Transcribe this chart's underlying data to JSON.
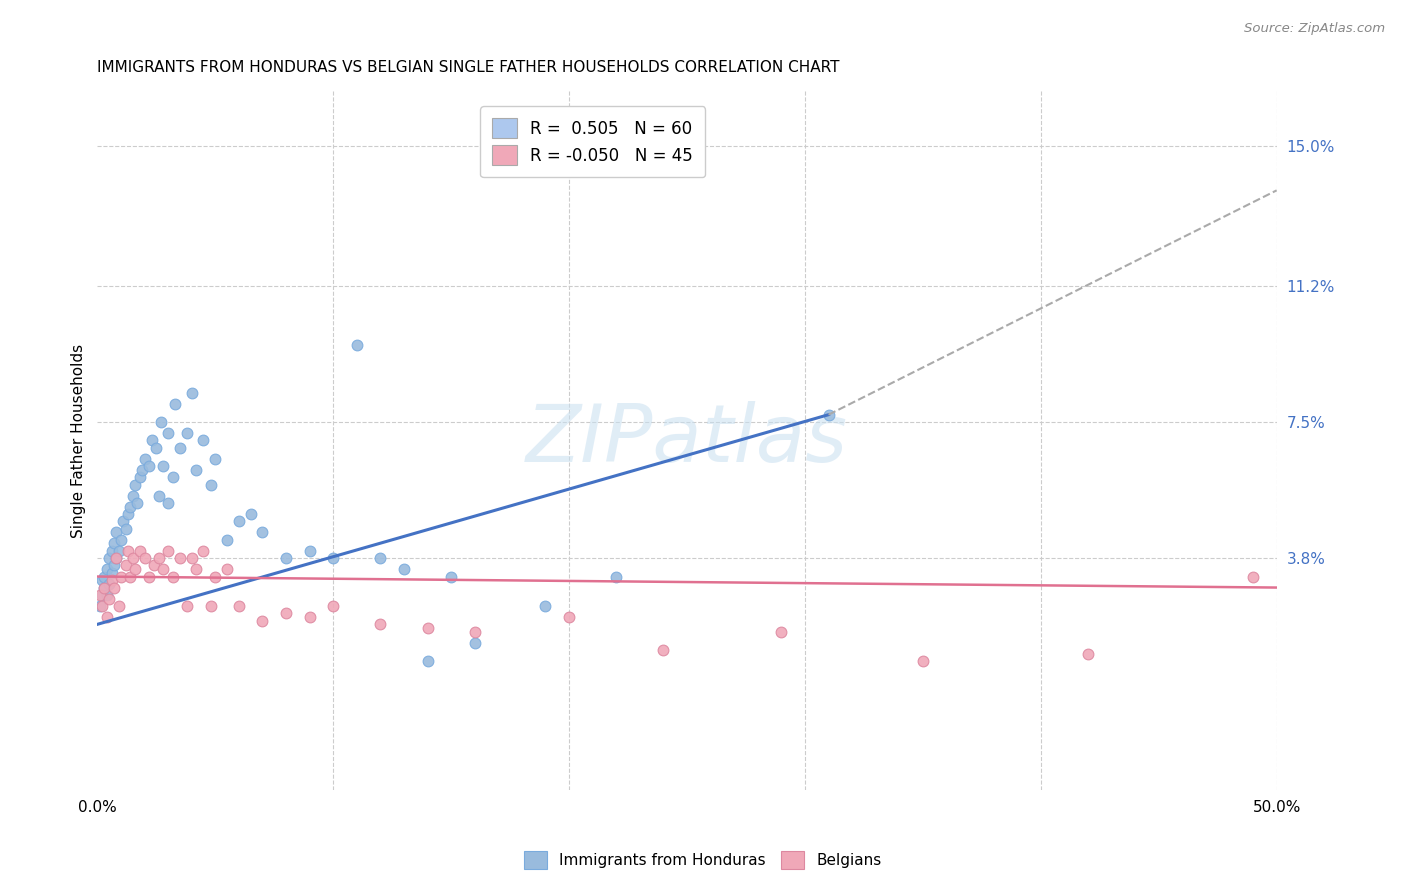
{
  "title": "IMMIGRANTS FROM HONDURAS VS BELGIAN SINGLE FATHER HOUSEHOLDS CORRELATION CHART",
  "source": "Source: ZipAtlas.com",
  "ylabel": "Single Father Households",
  "xlim": [
    0.0,
    0.5
  ],
  "ylim": [
    -0.025,
    0.165
  ],
  "yticks_right": [
    0.15,
    0.112,
    0.075,
    0.038
  ],
  "ytick_labels_right": [
    "15.0%",
    "11.2%",
    "7.5%",
    "3.8%"
  ],
  "legend_entries": [
    {
      "label": "R =  0.505   N = 60",
      "color": "#adc8ee"
    },
    {
      "label": "R = -0.050   N = 45",
      "color": "#f0a8b8"
    }
  ],
  "watermark_text": "ZIPatlas",
  "blue_color": "#4472c4",
  "pink_color": "#e07090",
  "blue_scatter_color": "#99bbdd",
  "pink_scatter_color": "#f0a8b8",
  "blue_line_x": [
    0.0,
    0.31
  ],
  "blue_line_y": [
    0.02,
    0.077
  ],
  "dash_line_x": [
    0.31,
    0.5
  ],
  "dash_line_y": [
    0.077,
    0.138
  ],
  "pink_line_x": [
    0.0,
    0.5
  ],
  "pink_line_y": [
    0.033,
    0.03
  ],
  "blue_dots": [
    [
      0.001,
      0.025
    ],
    [
      0.002,
      0.028
    ],
    [
      0.002,
      0.032
    ],
    [
      0.003,
      0.03
    ],
    [
      0.003,
      0.033
    ],
    [
      0.004,
      0.028
    ],
    [
      0.004,
      0.035
    ],
    [
      0.005,
      0.031
    ],
    [
      0.005,
      0.038
    ],
    [
      0.006,
      0.034
    ],
    [
      0.006,
      0.04
    ],
    [
      0.007,
      0.036
    ],
    [
      0.007,
      0.042
    ],
    [
      0.008,
      0.038
    ],
    [
      0.008,
      0.045
    ],
    [
      0.009,
      0.04
    ],
    [
      0.01,
      0.043
    ],
    [
      0.011,
      0.048
    ],
    [
      0.012,
      0.046
    ],
    [
      0.013,
      0.05
    ],
    [
      0.014,
      0.052
    ],
    [
      0.015,
      0.055
    ],
    [
      0.016,
      0.058
    ],
    [
      0.017,
      0.053
    ],
    [
      0.018,
      0.06
    ],
    [
      0.019,
      0.062
    ],
    [
      0.02,
      0.065
    ],
    [
      0.022,
      0.063
    ],
    [
      0.023,
      0.07
    ],
    [
      0.025,
      0.068
    ],
    [
      0.026,
      0.055
    ],
    [
      0.027,
      0.075
    ],
    [
      0.028,
      0.063
    ],
    [
      0.03,
      0.053
    ],
    [
      0.03,
      0.072
    ],
    [
      0.032,
      0.06
    ],
    [
      0.033,
      0.08
    ],
    [
      0.035,
      0.068
    ],
    [
      0.038,
      0.072
    ],
    [
      0.04,
      0.083
    ],
    [
      0.042,
      0.062
    ],
    [
      0.045,
      0.07
    ],
    [
      0.048,
      0.058
    ],
    [
      0.05,
      0.065
    ],
    [
      0.055,
      0.043
    ],
    [
      0.06,
      0.048
    ],
    [
      0.065,
      0.05
    ],
    [
      0.07,
      0.045
    ],
    [
      0.08,
      0.038
    ],
    [
      0.09,
      0.04
    ],
    [
      0.1,
      0.038
    ],
    [
      0.11,
      0.096
    ],
    [
      0.12,
      0.038
    ],
    [
      0.13,
      0.035
    ],
    [
      0.14,
      0.01
    ],
    [
      0.15,
      0.033
    ],
    [
      0.16,
      0.015
    ],
    [
      0.19,
      0.025
    ],
    [
      0.22,
      0.033
    ],
    [
      0.31,
      0.077
    ]
  ],
  "pink_dots": [
    [
      0.001,
      0.028
    ],
    [
      0.002,
      0.025
    ],
    [
      0.003,
      0.03
    ],
    [
      0.004,
      0.022
    ],
    [
      0.005,
      0.027
    ],
    [
      0.006,
      0.032
    ],
    [
      0.007,
      0.03
    ],
    [
      0.008,
      0.038
    ],
    [
      0.009,
      0.025
    ],
    [
      0.01,
      0.033
    ],
    [
      0.012,
      0.036
    ],
    [
      0.013,
      0.04
    ],
    [
      0.014,
      0.033
    ],
    [
      0.015,
      0.038
    ],
    [
      0.016,
      0.035
    ],
    [
      0.018,
      0.04
    ],
    [
      0.02,
      0.038
    ],
    [
      0.022,
      0.033
    ],
    [
      0.024,
      0.036
    ],
    [
      0.026,
      0.038
    ],
    [
      0.028,
      0.035
    ],
    [
      0.03,
      0.04
    ],
    [
      0.032,
      0.033
    ],
    [
      0.035,
      0.038
    ],
    [
      0.038,
      0.025
    ],
    [
      0.04,
      0.038
    ],
    [
      0.042,
      0.035
    ],
    [
      0.045,
      0.04
    ],
    [
      0.048,
      0.025
    ],
    [
      0.05,
      0.033
    ],
    [
      0.055,
      0.035
    ],
    [
      0.06,
      0.025
    ],
    [
      0.07,
      0.021
    ],
    [
      0.08,
      0.023
    ],
    [
      0.09,
      0.022
    ],
    [
      0.1,
      0.025
    ],
    [
      0.12,
      0.02
    ],
    [
      0.14,
      0.019
    ],
    [
      0.16,
      0.018
    ],
    [
      0.2,
      0.022
    ],
    [
      0.24,
      0.013
    ],
    [
      0.29,
      0.018
    ],
    [
      0.35,
      0.01
    ],
    [
      0.42,
      0.012
    ],
    [
      0.49,
      0.033
    ]
  ]
}
